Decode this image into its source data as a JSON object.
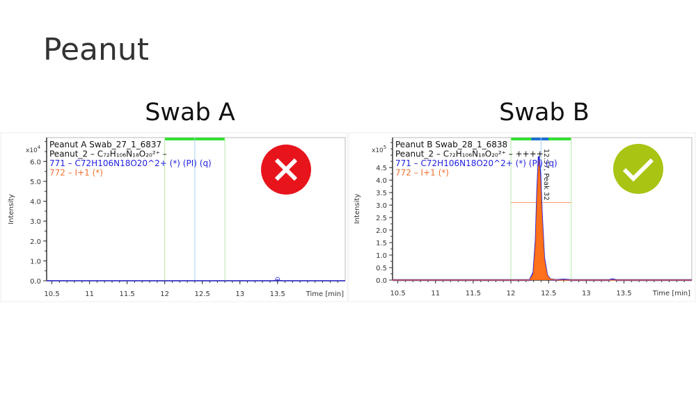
{
  "page": {
    "title": "Peanut"
  },
  "chart_data": [
    {
      "type": "line",
      "subtitle": "Swab A",
      "status": "fail",
      "status_icon": "x-mark-icon",
      "status_color": "#e8141c",
      "legend": [
        {
          "text": "Peanut A Swab_27_1_6837",
          "color": "#111111"
        },
        {
          "text": "Peanut_2 – C₇₂H₁₀₆N₁₈O₂₀²⁺ –",
          "color": "#111111"
        },
        {
          "text": "771 – C72H106N18O20^2+ (*) (PI) (q)",
          "color": "#2020e0"
        },
        {
          "text": "772 – I+1 (*)",
          "color": "#f07030"
        }
      ],
      "ylabel": "Intensity",
      "xlabel": "Time [min]",
      "y_multiplier": "x10",
      "y_exponent": "4",
      "xlim": [
        10.43,
        14.4
      ],
      "ylim": [
        0,
        7.2
      ],
      "xticks": [
        "10.5",
        "11",
        "11.5",
        "12",
        "12.5",
        "13",
        "13.5"
      ],
      "yticks": [
        "0.0",
        "1.0",
        "2.0",
        "3.0",
        "4.0",
        "5.0",
        "6.0"
      ],
      "integration_window": [
        12.0,
        12.8
      ],
      "expected_rt": 12.4,
      "series": [
        {
          "color": "#2020e0",
          "x": [
            10.43,
            13.45,
            13.5,
            13.55,
            14.4
          ],
          "y": [
            0,
            0,
            0.05,
            0,
            0
          ]
        }
      ]
    },
    {
      "type": "area",
      "subtitle": "Swab B",
      "status": "pass",
      "status_icon": "check-mark-icon",
      "status_color": "#a9c412",
      "legend": [
        {
          "text": "Peanut B Swab_28_1_6838",
          "color": "#111111"
        },
        {
          "text": "Peanut_2 – C₇₂H₁₀₆N₁₈O₂₀²⁺ – ++++",
          "color": "#111111"
        },
        {
          "text": "771 – C72H106N18O20^2+ (*) (PI) (q)",
          "color": "#2020e0"
        },
        {
          "text": "772 – I+1 (*)",
          "color": "#f07030"
        }
      ],
      "ylabel": "Intensity",
      "xlabel": "Time [min]",
      "y_multiplier": "x10",
      "y_exponent": "5",
      "xlim": [
        10.43,
        14.4
      ],
      "ylim": [
        0,
        5.7
      ],
      "xticks": [
        "10.5",
        "11",
        "11.5",
        "12",
        "12.5",
        "13",
        "13.5"
      ],
      "yticks": [
        "0.0",
        "0.5",
        "1.0",
        "1.5",
        "2.0",
        "2.5",
        "3.0",
        "3.5",
        "4.0",
        "4.5"
      ],
      "integration_window": [
        12.0,
        12.8
      ],
      "expected_rt": 12.4,
      "peak_window": [
        12.27,
        12.5
      ],
      "threshold": 3.1,
      "peak_label": "12.37, Peak 32",
      "series": [
        {
          "color": "#2020e0",
          "x": [
            10.43,
            12.25,
            12.3,
            12.33,
            12.35,
            12.37,
            12.39,
            12.41,
            12.44,
            12.48,
            12.52,
            12.6,
            12.7,
            12.8,
            13.3,
            13.35,
            13.4,
            14.4
          ],
          "y": [
            0,
            0,
            0.3,
            1.6,
            3.6,
            4.95,
            4.2,
            2.6,
            0.9,
            0.2,
            0.03,
            0,
            0.02,
            0,
            0,
            0.03,
            0,
            0
          ]
        },
        {
          "color": "#ff6a10",
          "x": [
            10.43,
            12.25,
            12.3,
            12.33,
            12.35,
            12.37,
            12.39,
            12.41,
            12.44,
            12.48,
            12.52,
            12.6,
            14.4
          ],
          "y": [
            0,
            0,
            0.25,
            1.5,
            3.4,
            4.8,
            4.0,
            2.5,
            0.85,
            0.2,
            0.03,
            0,
            0
          ]
        }
      ]
    }
  ]
}
